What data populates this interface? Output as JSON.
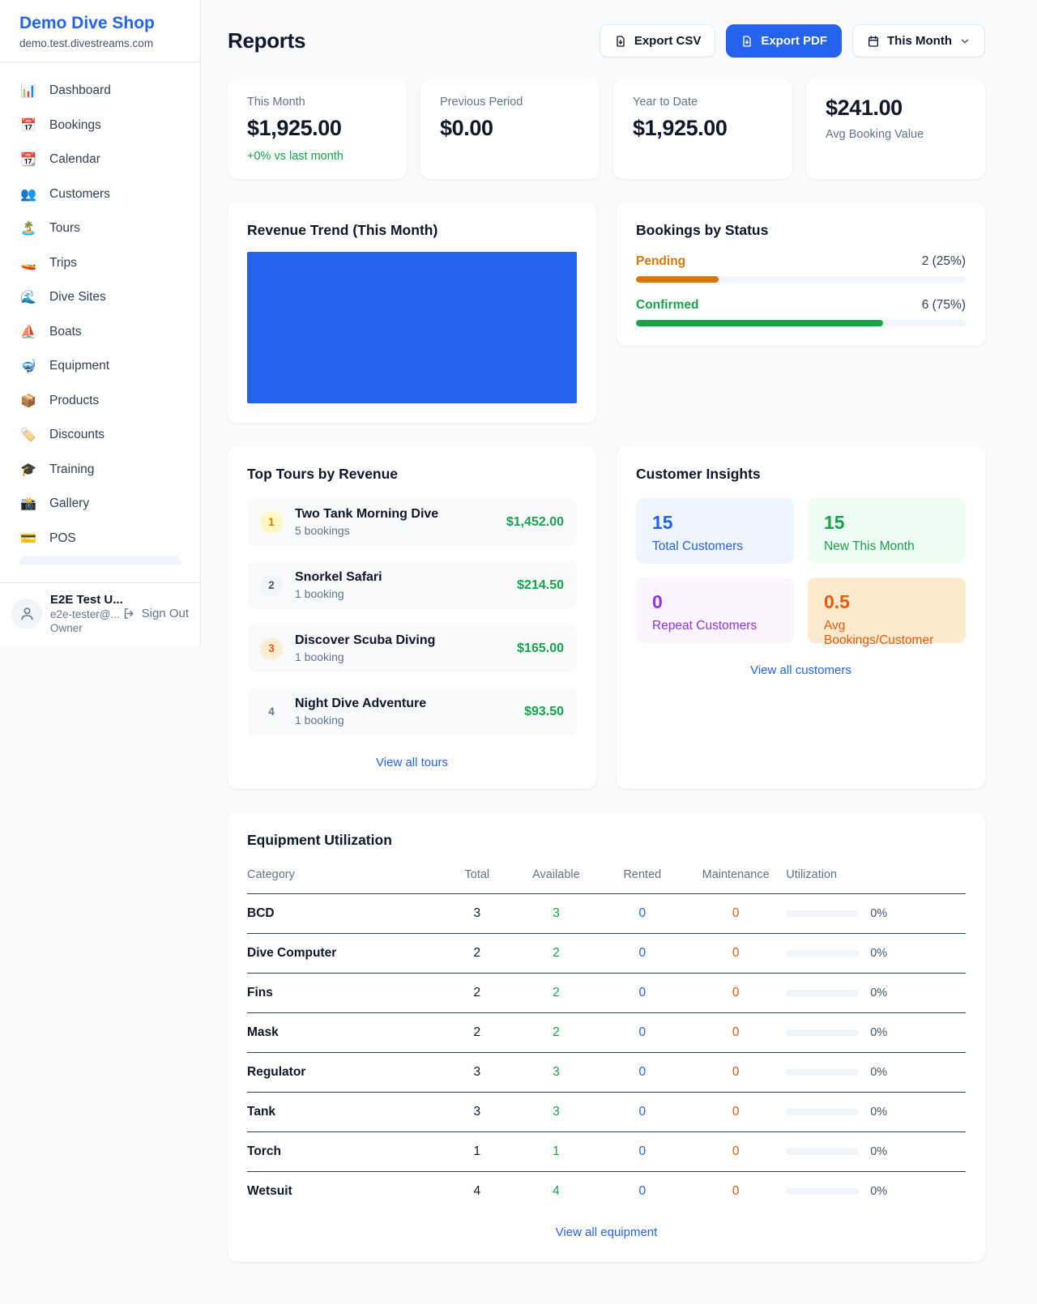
{
  "sidebar": {
    "brand": {
      "name": "Demo Dive Shop",
      "domain": "demo.test.divestreams.com"
    },
    "items": [
      {
        "label": "Dashboard",
        "icon": "📊"
      },
      {
        "label": "Bookings",
        "icon": "📅"
      },
      {
        "label": "Calendar",
        "icon": "📆"
      },
      {
        "label": "Customers",
        "icon": "👥"
      },
      {
        "label": "Tours",
        "icon": "🏝️"
      },
      {
        "label": "Trips",
        "icon": "🚤"
      },
      {
        "label": "Dive Sites",
        "icon": "🌊"
      },
      {
        "label": "Boats",
        "icon": "⛵"
      },
      {
        "label": "Equipment",
        "icon": "🤿"
      },
      {
        "label": "Products",
        "icon": "📦"
      },
      {
        "label": "Discounts",
        "icon": "🏷️"
      },
      {
        "label": "Training",
        "icon": "🎓"
      },
      {
        "label": "Gallery",
        "icon": "📸"
      },
      {
        "label": "POS",
        "icon": "💳"
      }
    ],
    "user": {
      "name": "E2E Test U...",
      "email": "e2e-tester@...",
      "role": "Owner",
      "sign_out": "Sign Out"
    }
  },
  "header": {
    "title": "Reports",
    "export_csv": "Export CSV",
    "export_pdf": "Export PDF",
    "period": "This Month"
  },
  "stats": [
    {
      "label": "This Month",
      "value": "$1,925.00",
      "delta": "+0% vs last month"
    },
    {
      "label": "Previous Period",
      "value": "$0.00"
    },
    {
      "label": "Year to Date",
      "value": "$1,925.00"
    },
    {
      "label": "Avg Booking Value",
      "value": "$241.00"
    }
  ],
  "revenue_trend": {
    "title": "Revenue Trend (This Month)",
    "bar_color": "#2563eb"
  },
  "chart_data": [
    {
      "type": "bar",
      "title": "Revenue Trend (This Month)",
      "categories": [
        "This Month"
      ],
      "values": [
        1925
      ],
      "xlabel": "",
      "ylabel": "",
      "notes": "single full-width solid blue bar, no axes or labels visible",
      "bar_color": "#2563eb"
    },
    {
      "type": "bar",
      "title": "Bookings by Status",
      "categories": [
        "Pending",
        "Confirmed"
      ],
      "values": [
        25,
        75
      ],
      "counts": [
        2,
        6
      ],
      "ylim": [
        0,
        100
      ],
      "notes": "horizontal progress bars, orange and green"
    }
  ],
  "bookings_by_status": {
    "title": "Bookings by Status",
    "rows": [
      {
        "label": "Pending",
        "display": "2 (25%)",
        "pct": 25,
        "color": "#d97706"
      },
      {
        "label": "Confirmed",
        "display": "6 (75%)",
        "pct": 75,
        "color": "#16a34a"
      }
    ]
  },
  "top_tours": {
    "title": "Top Tours by Revenue",
    "rows": [
      {
        "rank": "1",
        "name": "Two Tank Morning Dive",
        "bookings": "5 bookings",
        "revenue": "$1,452.00"
      },
      {
        "rank": "2",
        "name": "Snorkel Safari",
        "bookings": "1 booking",
        "revenue": "$214.50"
      },
      {
        "rank": "3",
        "name": "Discover Scuba Diving",
        "bookings": "1 booking",
        "revenue": "$165.00"
      },
      {
        "rank": "4",
        "name": "Night Dive Adventure",
        "bookings": "1 booking",
        "revenue": "$93.50"
      }
    ],
    "view_all": "View all tours"
  },
  "customer_insights": {
    "title": "Customer Insights",
    "cards": [
      {
        "value": "15",
        "label": "Total Customers"
      },
      {
        "value": "15",
        "label": "New This Month"
      },
      {
        "value": "0",
        "label": "Repeat Customers"
      },
      {
        "value": "0.5",
        "label": "Avg Bookings/Customer"
      }
    ],
    "view_all": "View all customers"
  },
  "equipment": {
    "title": "Equipment Utilization",
    "columns": [
      "Category",
      "Total",
      "Available",
      "Rented",
      "Maintenance",
      "Utilization"
    ],
    "rows": [
      {
        "category": "BCD",
        "total": "3",
        "available": "3",
        "rented": "0",
        "maintenance": "0",
        "utilization": "0%"
      },
      {
        "category": "Dive Computer",
        "total": "2",
        "available": "2",
        "rented": "0",
        "maintenance": "0",
        "utilization": "0%"
      },
      {
        "category": "Fins",
        "total": "2",
        "available": "2",
        "rented": "0",
        "maintenance": "0",
        "utilization": "0%"
      },
      {
        "category": "Mask",
        "total": "2",
        "available": "2",
        "rented": "0",
        "maintenance": "0",
        "utilization": "0%"
      },
      {
        "category": "Regulator",
        "total": "3",
        "available": "3",
        "rented": "0",
        "maintenance": "0",
        "utilization": "0%"
      },
      {
        "category": "Tank",
        "total": "3",
        "available": "3",
        "rented": "0",
        "maintenance": "0",
        "utilization": "0%"
      },
      {
        "category": "Torch",
        "total": "1",
        "available": "1",
        "rented": "0",
        "maintenance": "0",
        "utilization": "0%"
      },
      {
        "category": "Wetsuit",
        "total": "4",
        "available": "4",
        "rented": "0",
        "maintenance": "0",
        "utilization": "0%"
      }
    ],
    "view_all": "View all equipment"
  },
  "colors": {
    "accent": "#2563eb",
    "success": "#16a34a",
    "warning": "#d97706",
    "danger": "#ea580c",
    "purple": "#9333ea"
  }
}
